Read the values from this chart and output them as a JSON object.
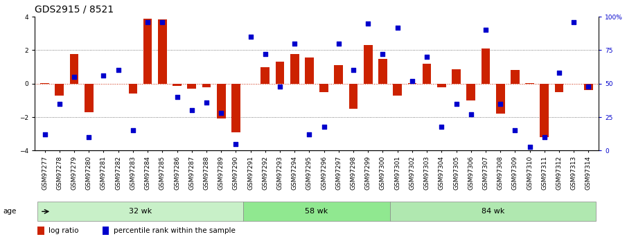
{
  "title": "GDS2915 / 8521",
  "samples": [
    "GSM97277",
    "GSM97278",
    "GSM97279",
    "GSM97280",
    "GSM97281",
    "GSM97282",
    "GSM97283",
    "GSM97284",
    "GSM97285",
    "GSM97286",
    "GSM97287",
    "GSM97288",
    "GSM97289",
    "GSM97290",
    "GSM97291",
    "GSM97292",
    "GSM97293",
    "GSM97294",
    "GSM97295",
    "GSM97296",
    "GSM97297",
    "GSM97298",
    "GSM97299",
    "GSM97300",
    "GSM97301",
    "GSM97302",
    "GSM97303",
    "GSM97304",
    "GSM97305",
    "GSM97306",
    "GSM97307",
    "GSM97308",
    "GSM97309",
    "GSM97310",
    "GSM97311",
    "GSM97312",
    "GSM97313",
    "GSM97314"
  ],
  "log_ratio": [
    0.05,
    -0.7,
    1.75,
    -1.7,
    0.0,
    0.0,
    -0.6,
    3.9,
    3.85,
    -0.15,
    -0.3,
    -0.2,
    -2.1,
    -2.9,
    0.0,
    1.0,
    1.3,
    1.75,
    1.55,
    -0.5,
    1.1,
    -1.5,
    2.3,
    1.5,
    -0.7,
    0.05,
    1.2,
    -0.2,
    0.85,
    -1.0,
    2.1,
    -1.8,
    0.8,
    0.05,
    -3.2,
    -0.5,
    0.0,
    -0.4
  ],
  "percentile": [
    12,
    35,
    55,
    10,
    56,
    60,
    15,
    96,
    96,
    40,
    30,
    36,
    28,
    5,
    85,
    72,
    48,
    80,
    12,
    18,
    80,
    60,
    95,
    72,
    92,
    52,
    70,
    18,
    35,
    27,
    90,
    35,
    15,
    3,
    10,
    58,
    96,
    48
  ],
  "groups": [
    {
      "label": "32 wk",
      "start": 0,
      "end": 14,
      "color": "#c8f0c8"
    },
    {
      "label": "58 wk",
      "start": 14,
      "end": 24,
      "color": "#90e890"
    },
    {
      "label": "84 wk",
      "start": 24,
      "end": 38,
      "color": "#b0e8b0"
    }
  ],
  "ylim": [
    -4,
    4
  ],
  "bar_color": "#cc2200",
  "dot_color": "#0000cc",
  "hline_color": "#cc2200",
  "dotted_color": "#555555",
  "background_color": "#ffffff",
  "title_fontsize": 10,
  "tick_fontsize": 6.5,
  "yticks_left": [
    -4,
    -2,
    0,
    2,
    4
  ],
  "ylabel_right_ticks": [
    0,
    25,
    50,
    75,
    100
  ],
  "ylabel_right_labels": [
    "0",
    "25",
    "50",
    "75",
    "100%"
  ]
}
